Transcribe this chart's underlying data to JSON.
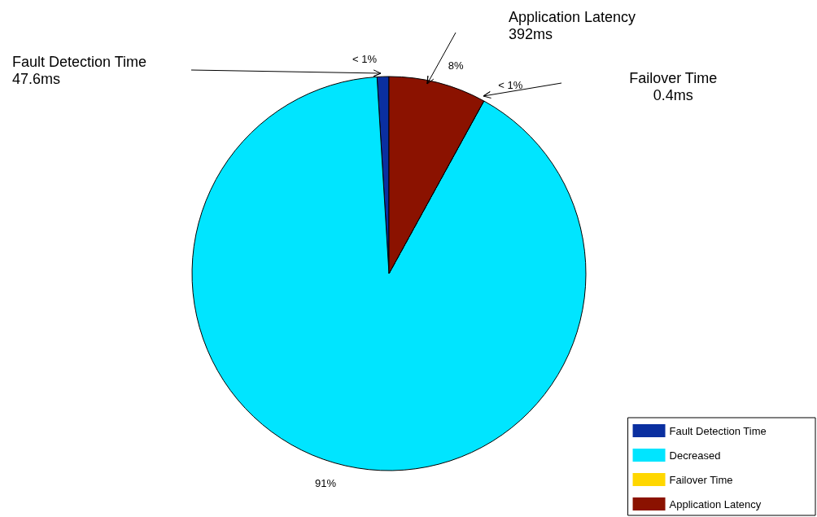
{
  "chart_data": {
    "type": "pie",
    "categories": [
      "Fault Detection Time",
      "Decreased",
      "Failover Time",
      "Application Latency"
    ],
    "values": [
      0.97,
      91.02,
      0.01,
      8.0
    ],
    "value_labels": [
      "< 1%",
      "91%",
      "< 1%",
      "8%"
    ],
    "colors": [
      "#0a2fa0",
      "#00e5ff",
      "#ffd700",
      "#8b1200"
    ],
    "legend": "bottom right",
    "annotations": [
      "Fault Detection Time\n47.6ms",
      "Application Latency\n392ms",
      "Failover Time\n0.4ms"
    ]
  }
}
